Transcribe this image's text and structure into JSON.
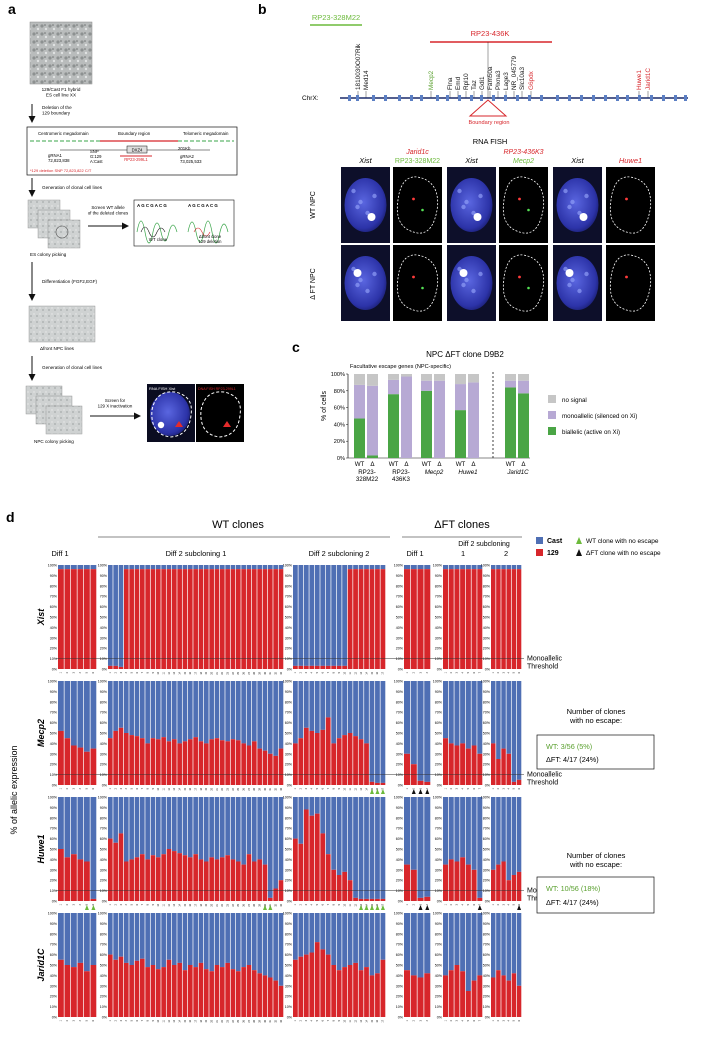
{
  "panels": {
    "a": "a",
    "b": "b",
    "c": "c",
    "d": "d"
  },
  "panel_a": {
    "es_line": "129/Cast F1 hybrid\nES cell line XX",
    "step1": "Deletion of the\n129 boundary",
    "diagram": {
      "left_region": "Centromeric megadomain",
      "mid_region": "Boundary region",
      "right_region": "Telomeric megadomain",
      "grna1": "gRNA1\n72,823,838",
      "snp": "SNP\nG:129\nA:Cast",
      "dxz4": "DXZ4",
      "bac": "RP23-299L1",
      "kb": "201Kb",
      "grna2": "gRNA2\n73,025,533",
      "deletion_note": "*129 deletion SNP 72,823,822 C/T"
    },
    "step2": "Generation of clonal cell lines",
    "screen_wt": "Screen WT allele\nof the deleted clones",
    "seq_left": "A G C G A C G",
    "seq_right": "A G C G A C G",
    "wt_clone": "WT clone",
    "del_clone": "Δfront clone\n129 deletion",
    "es_picking": "ES colony picking",
    "differentiation": "Differentiation (FGF2,EGF)",
    "npc_lines": "Δfront NPC lines",
    "step3": "Generation of clonal cell lines",
    "screen_129": "Screen for\n129 X inactivation",
    "rna_fish": "RNA FISH Xist",
    "dna_fish": "DNA FISH RP23-299L1",
    "npc_picking": "NPC colony picking"
  },
  "panel_b": {
    "bac_green": "RP23-328M22",
    "bac_red": "RP23-436K",
    "genes_black_left": [
      "1810030O07Rik",
      "Med14"
    ],
    "gene_green": "Mecp2",
    "genes_black_mid": [
      "Flna",
      "Emd",
      "Rpl10",
      "Taz",
      "Gdi1",
      "Fam50a",
      "Plxna3",
      "Lage3",
      "NR_045779",
      "Slc10a3"
    ],
    "gene_red_mid": "G6pdx",
    "genes_red_right": [
      "Huwe1",
      "Jarid1C"
    ],
    "chrx": "ChrX:",
    "boundary": "Boundary region",
    "rna_fish": "RNA FISH",
    "columns": [
      {
        "label": "Xist",
        "color": "#000000"
      },
      {
        "label": "Jarid1c",
        "label2": "RP23-328M22",
        "color": "#d7262b",
        "color2": "#6cba3b"
      },
      {
        "label": "Xist",
        "color": "#000000"
      },
      {
        "label": "RP23-436K3",
        "label2": "Mecp2",
        "color": "#d7262b",
        "color2": "#6cba3b"
      },
      {
        "label": "Xist",
        "color": "#000000"
      },
      {
        "label": "Huwe1",
        "color": "#d7262b"
      }
    ],
    "rows": [
      "WT NPC",
      "Δ FT NPC"
    ]
  },
  "panel_c": {
    "title": "NPC ΔFT clone D9B2",
    "subtitle": "Facultative escape genes (NPC-specific)",
    "ylabel": "% of cells",
    "legend": [
      "no signal",
      "monoallelic (silenced on Xi)",
      "biallelic (active on Xi)"
    ],
    "colors": [
      "#c6c6c6",
      "#b7a9d4",
      "#4aa545"
    ],
    "group_labels": [
      "RP23-\n328M22",
      "RP23-\n436K3",
      "Mecp2",
      "Huwe1",
      "Jarid1C"
    ]
  },
  "chart_data": [
    {
      "type": "bar",
      "title": "NPC ΔFT clone D9B2",
      "ylabel": "% of cells",
      "ylim": [
        0,
        100
      ],
      "ytick_labels": [
        "0%",
        "20%",
        "40%",
        "60%",
        "80%",
        "100%"
      ],
      "categories": [
        "WT",
        "Δ",
        "WT",
        "Δ",
        "WT",
        "Δ",
        "WT",
        "Δ",
        "WT",
        "Δ"
      ],
      "groups": [
        "RP23-328M22",
        "RP23-436K3",
        "Mecp2",
        "Huwe1",
        "Jarid1C"
      ],
      "series": [
        {
          "name": "biallelic (active on Xi)",
          "values": [
            47,
            3,
            76,
            0,
            80,
            0,
            57,
            0,
            84,
            77
          ]
        },
        {
          "name": "monoallelic (silenced on Xi)",
          "values": [
            40,
            83,
            17,
            97,
            12,
            92,
            31,
            90,
            8,
            15
          ]
        },
        {
          "name": "no signal",
          "values": [
            13,
            14,
            7,
            3,
            8,
            8,
            12,
            10,
            8,
            8
          ]
        }
      ]
    },
    {
      "type": "bar",
      "stacked": true,
      "ylim": [
        0,
        100
      ],
      "ytick_labels": [
        "0%",
        "10%",
        "20%",
        "30%",
        "40%",
        "50%",
        "60%",
        "70%",
        "80%",
        "90%",
        "100%"
      ],
      "series_names": [
        "129",
        "Cast"
      ],
      "threshold": 10,
      "groups": [
        {
          "label": "Diff 1",
          "n": 6
        },
        {
          "label": "Diff 2 subcloning 1",
          "n": 33
        },
        {
          "label": "Diff 2 subcloning 2",
          "n": 17
        },
        {
          "label": "Diff 1",
          "n": 4
        },
        {
          "label": "1",
          "n": 7
        },
        {
          "label": "2",
          "n": 6
        }
      ],
      "rows": [
        {
          "gene": "Xist",
          "values_129": [
            [
              96,
              96,
              96,
              96,
              96,
              96
            ],
            [
              3,
              3,
              2,
              96,
              96,
              96,
              96,
              96,
              96,
              96,
              96,
              96,
              96,
              96,
              96,
              96,
              96,
              96,
              96,
              96,
              96,
              96,
              96,
              96,
              96,
              96,
              96,
              96,
              96,
              96,
              96,
              96,
              96
            ],
            [
              3,
              3,
              3,
              3,
              3,
              3,
              3,
              3,
              3,
              3,
              96,
              96,
              96,
              96,
              96,
              96,
              96
            ],
            [
              96,
              96,
              96,
              96
            ],
            [
              96,
              96,
              96,
              96,
              96,
              96,
              96
            ],
            [
              96,
              96,
              96,
              96,
              96,
              96
            ]
          ]
        },
        {
          "gene": "Mecp2",
          "values_129": [
            [
              52,
              45,
              38,
              36,
              32,
              35
            ],
            [
              45,
              52,
              55,
              50,
              48,
              47,
              45,
              40,
              45,
              44,
              46,
              42,
              44,
              40,
              42,
              44,
              46,
              42,
              40,
              44,
              45,
              43,
              42,
              44,
              43,
              40,
              38,
              42,
              35,
              33,
              30,
              28,
              35
            ],
            [
              40,
              45,
              55,
              52,
              50,
              53,
              65,
              40,
              45,
              48,
              50,
              47,
              44,
              40,
              3,
              2,
              2
            ],
            [
              30,
              20,
              4,
              3
            ],
            [
              45,
              40,
              38,
              40,
              35,
              38,
              30
            ],
            [
              40,
              25,
              35,
              30,
              3,
              5
            ]
          ],
          "no_escape_marks": [
            [],
            [],
            [
              14,
              15,
              16
            ],
            [
              1,
              2,
              3
            ],
            [],
            []
          ]
        },
        {
          "gene": "Huwe1",
          "values_129": [
            [
              50,
              42,
              45,
              40,
              38,
              2
            ],
            [
              60,
              56,
              65,
              38,
              40,
              42,
              45,
              40,
              44,
              42,
              45,
              50,
              48,
              46,
              44,
              42,
              45,
              40,
              38,
              42,
              40,
              42,
              44,
              40,
              38,
              35,
              45,
              38,
              40,
              35,
              3,
              12,
              20
            ],
            [
              60,
              55,
              88,
              82,
              84,
              65,
              45,
              30,
              25,
              28,
              20,
              3,
              2,
              2,
              2,
              2,
              2
            ],
            [
              35,
              30,
              3,
              4
            ],
            [
              35,
              40,
              38,
              42,
              35,
              30,
              3
            ],
            [
              30,
              35,
              38,
              20,
              25,
              28
            ]
          ],
          "no_escape_marks": [
            [
              4,
              5
            ],
            [
              29,
              30
            ],
            [
              12,
              13,
              14,
              15,
              16
            ],
            [
              2,
              3
            ],
            [
              6
            ],
            [
              5
            ]
          ]
        },
        {
          "gene": "Jarid1C",
          "values_129": [
            [
              55,
              50,
              48,
              52,
              44,
              50
            ],
            [
              60,
              55,
              58,
              52,
              50,
              54,
              56,
              48,
              50,
              46,
              48,
              55,
              50,
              52,
              45,
              50,
              48,
              52,
              46,
              44,
              50,
              48,
              52,
              46,
              44,
              48,
              50,
              45,
              42,
              40,
              38,
              35,
              30
            ],
            [
              55,
              58,
              60,
              62,
              72,
              65,
              60,
              50,
              45,
              48,
              50,
              52,
              45,
              48,
              40,
              42,
              55
            ],
            [
              45,
              40,
              38,
              42
            ],
            [
              40,
              45,
              50,
              44,
              25,
              35,
              40
            ],
            [
              38,
              45,
              40,
              35,
              42,
              30
            ]
          ]
        }
      ]
    }
  ],
  "panel_d": {
    "wt_header": "WT clones",
    "dft_header": "ΔFT clones",
    "diff2_header": "Diff 2 subcloning",
    "ylabel": "% of allelic expression",
    "legend_cast": "Cast",
    "legend_129": "129",
    "legend_wt_noescape": "WT clone with no escape",
    "legend_dft_noescape": "ΔFT clone with no escape",
    "cast_color": "#4f6fb4",
    "red_color": "#d7262b",
    "threshold_label": "Monoallelic\nThreshold",
    "noescape_title": "Number of clones\nwith no escape:",
    "mecp2_wt": "WT:  3/56   (5%)",
    "mecp2_dft": "ΔFT: 4/17    (24%)",
    "huwe1_wt": "WT:  10/56   (18%)",
    "huwe1_dft": "ΔFT: 4/17    (24%)"
  }
}
